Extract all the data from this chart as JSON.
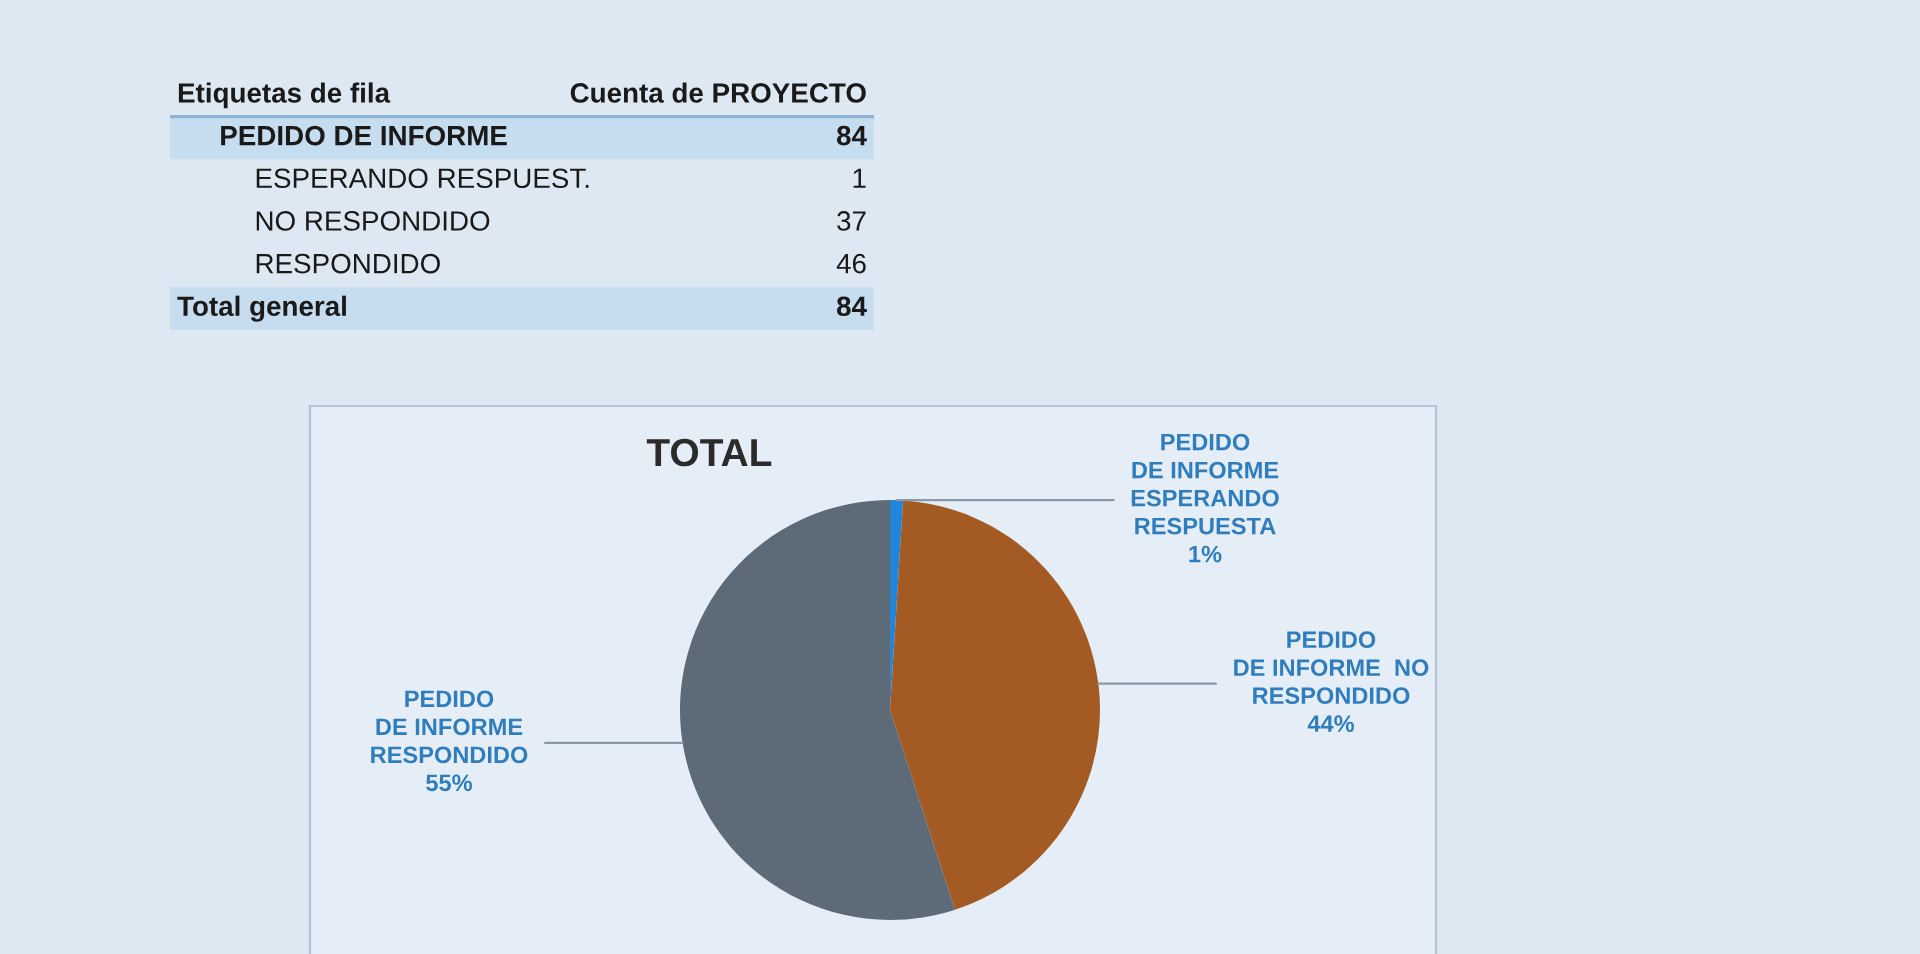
{
  "chart_data": [
    {
      "type": "other",
      "annotations": [
        "Etiquetas de fila",
        "Cuenta de PROYECTO",
        "PEDIDO DE INFORME",
        "84",
        "ESPERANDO RESPUEST.",
        "1",
        "NO RESPONDIDO",
        "37",
        "RESPONDIDO",
        "46",
        "Total general",
        "84"
      ]
    },
    {
      "type": "pie",
      "title": "TOTAL",
      "categories": [
        "PEDIDO\nDE INFORME\nESPERANDO\nRESPUESTA",
        "PEDIDO\nDE INFORME  NO\nRESPONDIDO",
        "PEDIDO\nDE INFORME\nRESPONDIDO"
      ],
      "values": [
        1,
        44,
        55
      ],
      "value_labels": [
        "1%",
        "44%",
        "55%"
      ],
      "colors": [
        "#2385d8",
        "#a35a23",
        "#5d6b78"
      ]
    }
  ]
}
